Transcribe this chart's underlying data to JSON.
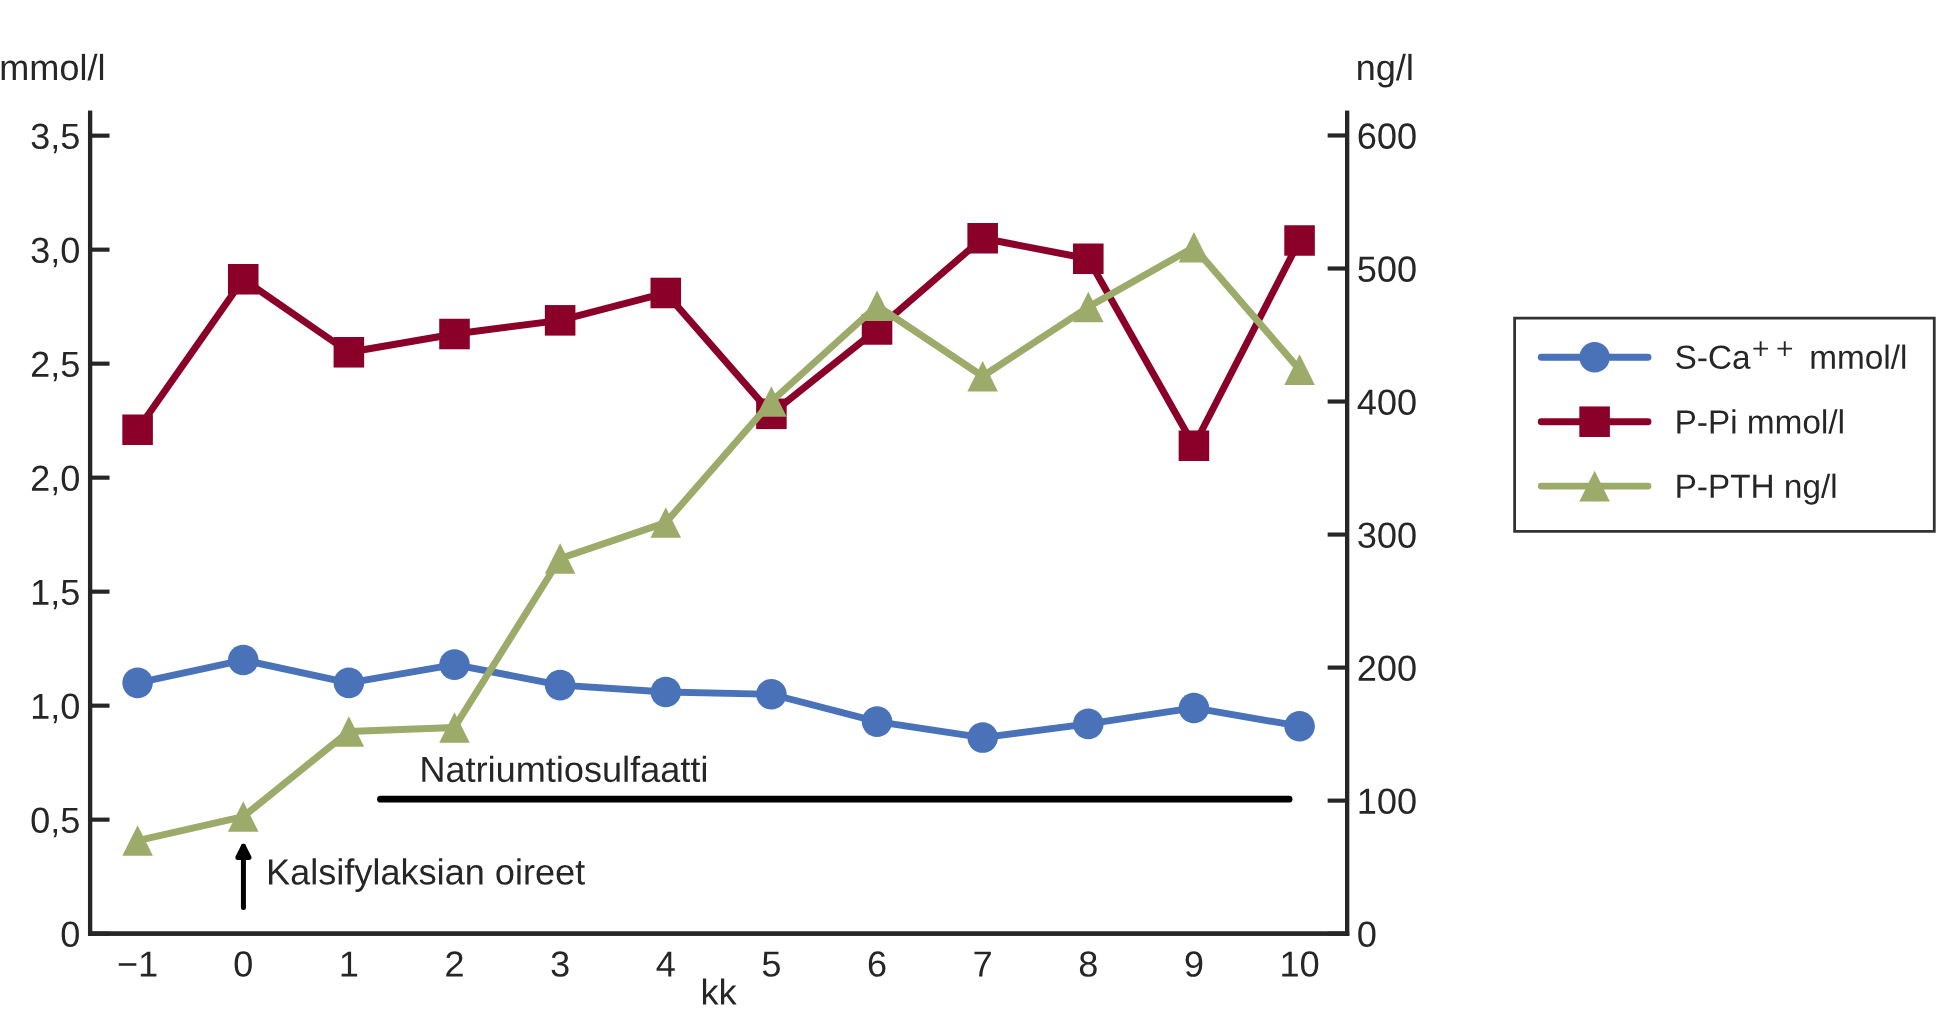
{
  "chart_data": {
    "type": "line",
    "ylabel": "mmol/l",
    "y2label": "ng/l",
    "xlabel": "kk",
    "x": [
      -1,
      0,
      1,
      2,
      3,
      4,
      5,
      6,
      7,
      8,
      9,
      10
    ],
    "series": [
      {
        "name": "S-Ca$^{++}$ mmol/l",
        "color": "#4a72b8",
        "marker": "circle",
        "values": [
          1.1,
          1.2,
          1.1,
          1.18,
          1.09,
          1.06,
          1.05,
          0.93,
          0.86,
          0.92,
          0.99,
          0.91
        ]
      },
      {
        "name": "P-Pi mmol/l",
        "color": "#8b0029",
        "marker": "square",
        "values": [
          2.21,
          2.87,
          2.55,
          2.63,
          2.69,
          2.81,
          2.28,
          2.65,
          3.05,
          2.96,
          2.14,
          3.04
        ]
      },
      {
        "name": "P-PTH ng/l",
        "color": "#9caa6a",
        "marker": "triangle",
        "axis": "y2",
        "values": [
          70,
          88,
          152,
          155,
          282,
          309,
          400,
          472,
          419,
          471,
          516,
          424
        ]
      },
      {
        "type": "line",
        "color": "#000000",
        "marker": "none",
        "x": [
          1.3,
          9.9
        ],
        "values": [
          0.59,
          0.59
        ]
      }
    ],
    "annotations": [
      "Natriumtiosulfaatti",
      "Kalsifylaksian oireet"
    ],
    "xlim": [
      -1.45,
      10.45
    ],
    "xticks": [
      {
        "value": -1,
        "label": "−1"
      },
      0,
      1,
      2,
      3,
      4,
      5,
      6,
      7,
      8,
      9,
      10
    ],
    "ylim": [
      0,
      3.6
    ],
    "yticks": [
      0,
      {
        "value": 0.5,
        "label": "0,5"
      },
      {
        "value": 1.0,
        "label": "1,0"
      },
      {
        "value": 1.5,
        "label": "1,5"
      },
      {
        "value": 2.0,
        "label": "2,0"
      },
      {
        "value": 2.5,
        "label": "2,5"
      },
      {
        "value": 3.0,
        "label": "3,0"
      },
      {
        "value": 3.5,
        "label": "3,5"
      }
    ],
    "y2lim": [
      0,
      617
    ],
    "y2ticks": [
      0,
      100,
      200,
      300,
      400,
      500,
      600
    ],
    "grid": false,
    "legend": "right",
    "line_style": "solid"
  }
}
